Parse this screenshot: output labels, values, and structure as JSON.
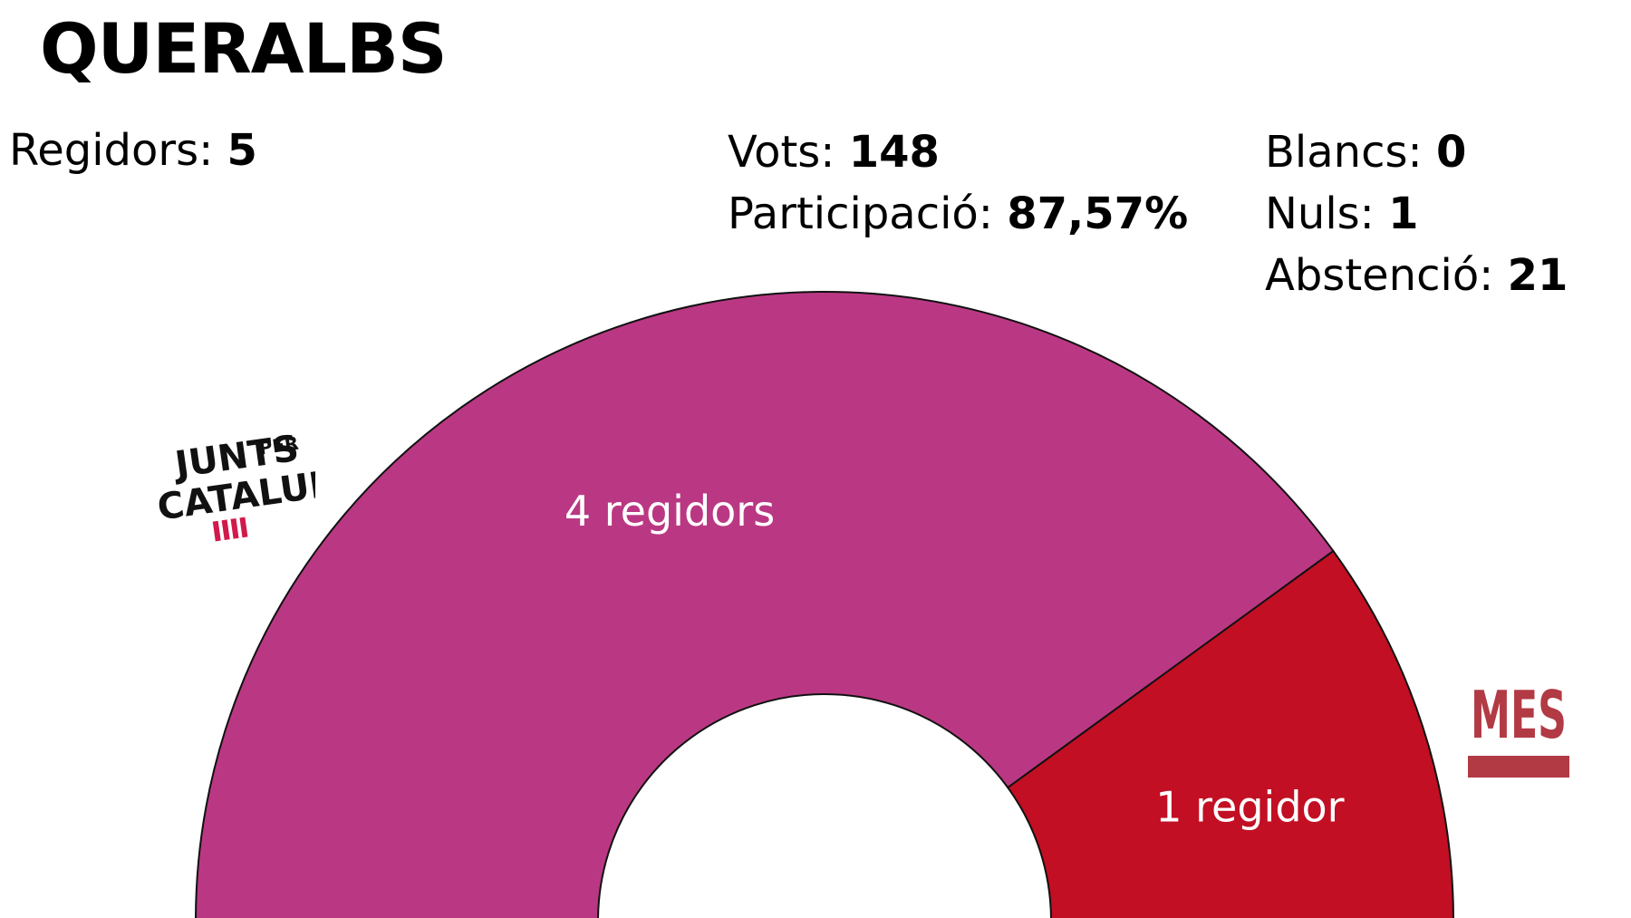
{
  "title": "QUERALBS",
  "stats": {
    "regidors": {
      "label": "Regidors:",
      "value": "5"
    },
    "vots": {
      "label": "Vots:",
      "value": "148"
    },
    "participacio": {
      "label": "Participació:",
      "value": "87,57%"
    },
    "blancs": {
      "label": "Blancs:",
      "value": "0"
    },
    "nuls": {
      "label": "Nuls:",
      "value": "1"
    },
    "abstencio": {
      "label": "Abstenció:",
      "value": "21"
    }
  },
  "logos": {
    "junts": {
      "line1": "JUNTS",
      "per": "PER",
      "line2": "CATALUNYA"
    },
    "mes": {
      "text": "MES"
    }
  },
  "chart_data": {
    "type": "pie",
    "style": "semicircle-donut",
    "total_seats": 5,
    "slices": [
      {
        "party": "Junts per Catalunya",
        "seats": 4,
        "label": "4 regidors",
        "color": "#BA3883"
      },
      {
        "party": "MES",
        "seats": 1,
        "label": "1 regidor",
        "color": "#C20F23"
      }
    ]
  }
}
